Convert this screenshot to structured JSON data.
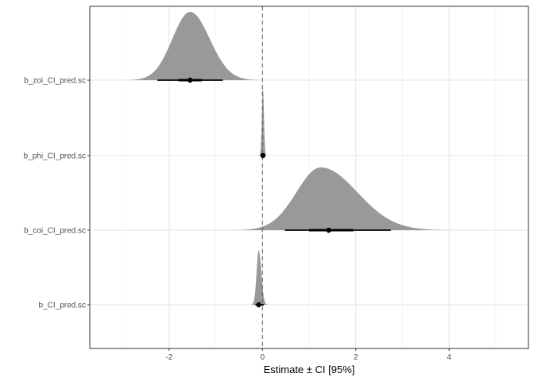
{
  "chart_data": {
    "type": "density-interval",
    "title": "",
    "xlabel": "Estimate ± CI [95%]",
    "ylabel": "",
    "xlim": [
      -3.7,
      5.7
    ],
    "x_ticks": [
      -2,
      0,
      2,
      4
    ],
    "x_tick_labels": [
      "-2",
      "0",
      "2",
      "4"
    ],
    "reference_line": {
      "x": 0,
      "style": "dashed"
    },
    "grid": true,
    "fill_color": "#999999",
    "interval_color": "#000000",
    "categories": [
      "b_zoi_CI_pred.sc",
      "b_phi_CI_pred.sc",
      "b_coi_CI_pred.sc",
      "b_CI_pred.sc"
    ],
    "series": [
      {
        "name": "b_zoi_CI_pred.sc",
        "estimate": -1.55,
        "ci_low": -2.25,
        "ci_high": -0.85,
        "inner_low": -1.8,
        "inner_high": -1.3,
        "density_from": -3.3,
        "density_to": 0.0,
        "peak": -1.55,
        "spread_left": 0.38,
        "spread_right": 0.42,
        "rel_height": 1.0
      },
      {
        "name": "b_phi_CI_pred.sc",
        "estimate": 0.01,
        "ci_low": -0.03,
        "ci_high": 0.05,
        "inner_low": -0.01,
        "inner_high": 0.03,
        "density_from": -0.12,
        "density_to": 0.14,
        "peak": 0.01,
        "spread_left": 0.022,
        "spread_right": 0.022,
        "rel_height": 1.0
      },
      {
        "name": "b_coi_CI_pred.sc",
        "estimate": 1.42,
        "ci_low": 0.48,
        "ci_high": 2.75,
        "inner_low": 1.0,
        "inner_high": 1.95,
        "density_from": -0.7,
        "density_to": 4.3,
        "peak": 1.25,
        "spread_left": 0.52,
        "spread_right": 0.78,
        "rel_height": 0.92
      },
      {
        "name": "b_CI_pred.sc",
        "estimate": -0.08,
        "ci_low": -0.15,
        "ci_high": 0.03,
        "inner_low": -0.11,
        "inner_high": -0.04,
        "density_from": -0.28,
        "density_to": 0.2,
        "peak": -0.08,
        "spread_left": 0.045,
        "spread_right": 0.055,
        "rel_height": 0.8
      }
    ]
  }
}
